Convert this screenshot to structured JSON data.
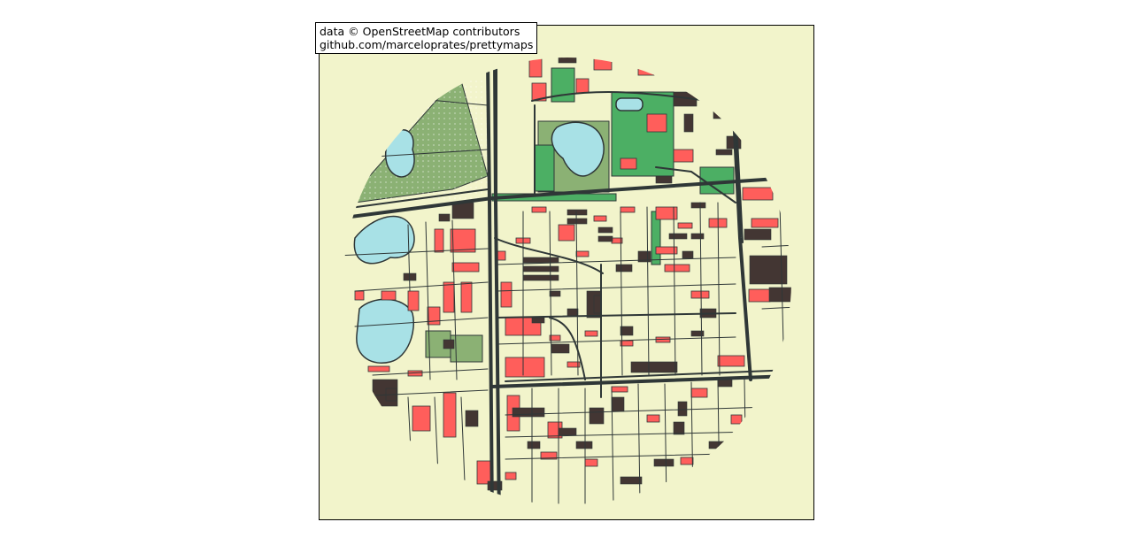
{
  "map": {
    "credit_line1": "data © OpenStreetMap contributors",
    "credit_line2": "github.com/marceloprates/prettymaps",
    "colors": {
      "background": "#F2F4CB",
      "building_red": "#FF5E5B",
      "building_dark": "#433633",
      "water": "#a8e1e6",
      "park": "#8BB174",
      "green": "#4CAF64",
      "road": "#2F3737",
      "outline": "#2F3737"
    },
    "layers": [
      "perimeter",
      "streets",
      "buildings",
      "water",
      "parks"
    ]
  }
}
